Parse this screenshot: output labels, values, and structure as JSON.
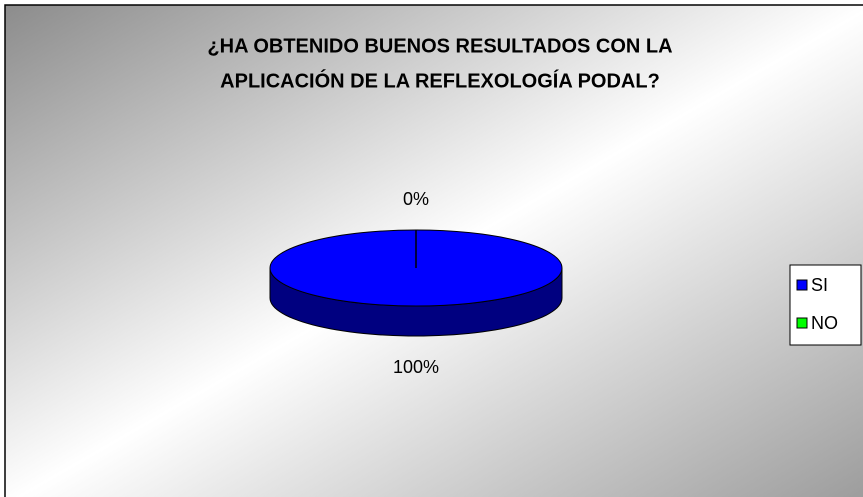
{
  "chart_data": {
    "type": "pie",
    "title": [
      "¿HA OBTENIDO BUENOS RESULTADOS CON LA",
      "APLICACIÓN DE LA REFLEXOLOGÍA PODAL?"
    ],
    "categories": [
      "SI",
      "NO"
    ],
    "values": [
      100,
      0
    ],
    "value_labels": [
      "100%",
      "0%"
    ],
    "colors": [
      "#0000ff",
      "#00ff00"
    ],
    "legend": "right"
  }
}
